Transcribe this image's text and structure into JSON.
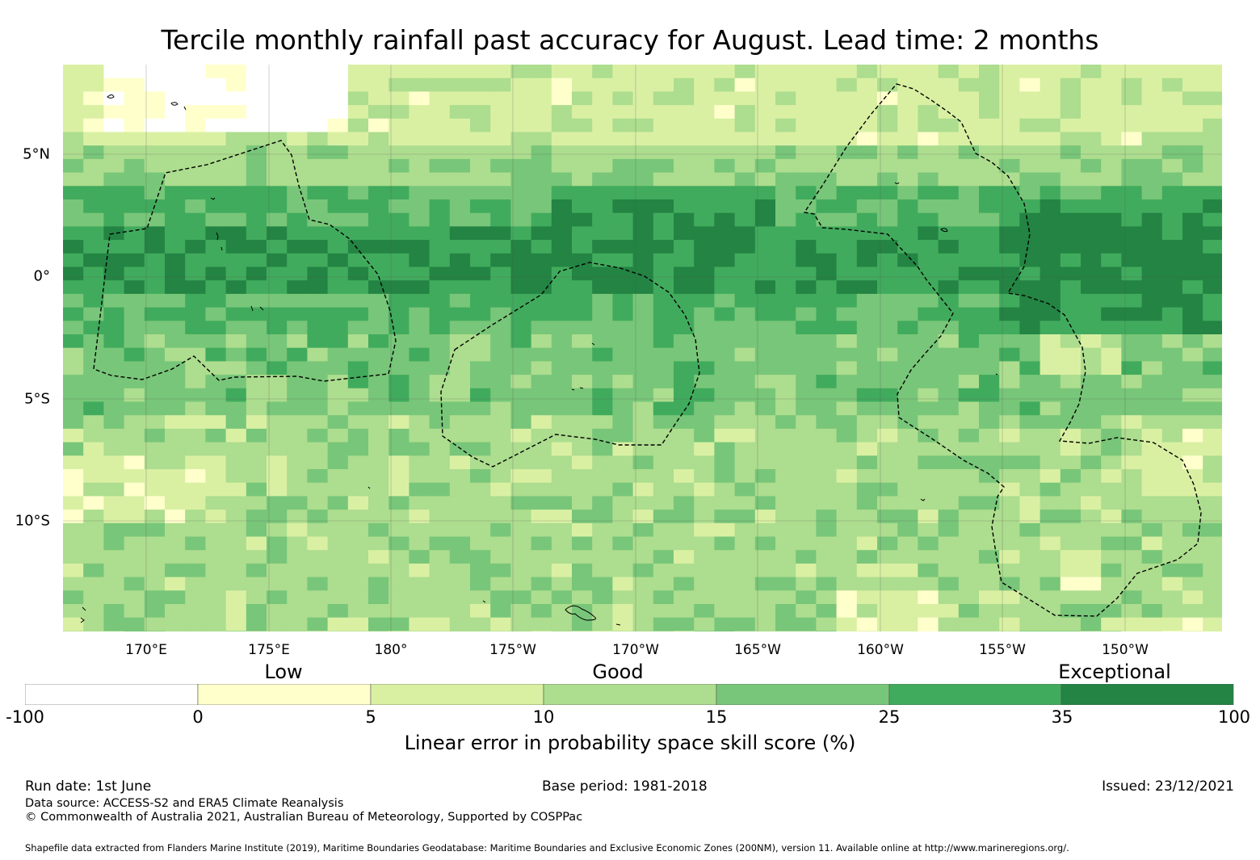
{
  "title": "Tercile monthly rainfall past accuracy for August. Lead time: 2 months",
  "map": {
    "lat_labels": [
      "5°N",
      "0°",
      "5°S",
      "10°S"
    ],
    "lon_labels": [
      "170°E",
      "175°E",
      "180°",
      "175°W",
      "170°W",
      "165°W",
      "160°W",
      "155°W",
      "150°W"
    ]
  },
  "legend": {
    "categories": [
      "Low",
      "Good",
      "Exceptional"
    ],
    "ticks": [
      "-100",
      "0",
      "5",
      "10",
      "15",
      "25",
      "35",
      "100"
    ],
    "colors": [
      "#ffffff",
      "#ffffcc",
      "#d9f0a3",
      "#addd8e",
      "#78c679",
      "#41ab5d",
      "#238443"
    ],
    "label": "Linear error in probability space skill score (%)"
  },
  "footer": {
    "run_date": "Run date: 1st June",
    "base_period": "Base period: 1981-2018",
    "issued": "Issued: 23/12/2021",
    "data_source": "Data source: ACCESS-S2 and ERA5 Climate Reanalysis",
    "copyright": "© Commonwealth of Australia 2021, Australian Bureau of Meteorology, Supported by COSPPac",
    "shapefile": "Shapefile data extracted from Flanders Marine Institute (2019), Maritime Boundaries Geodatabase: Maritime Boundaries and Exclusive Economic Zones (200NM), version 11. Available online at http://www.marineregions.org/."
  }
}
